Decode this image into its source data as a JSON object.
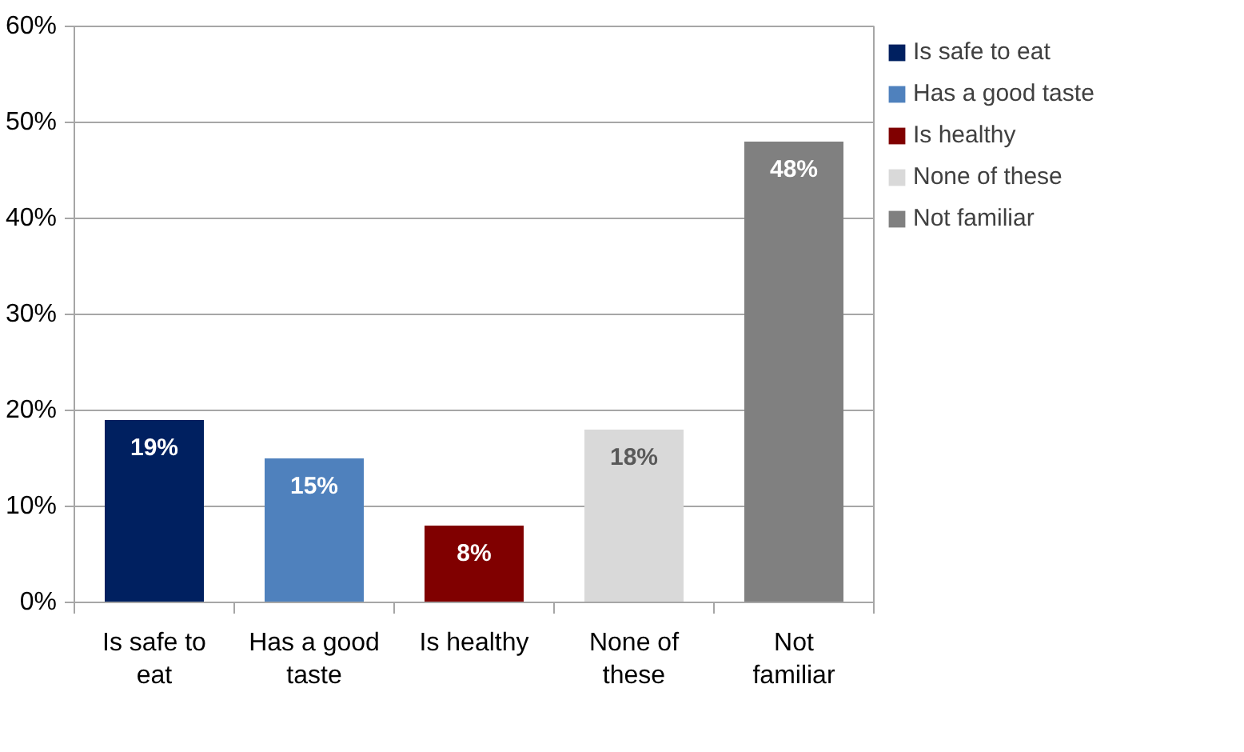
{
  "chart_data": {
    "type": "bar",
    "categories": [
      "Is safe to eat",
      "Has a good taste",
      "Is healthy",
      "None of these",
      "Not familiar"
    ],
    "series": [
      {
        "name": "Is safe to eat",
        "color": "#002060",
        "values": [
          19,
          null,
          null,
          null,
          null
        ],
        "value_labels": [
          "19%",
          null,
          null,
          null,
          null
        ]
      },
      {
        "name": "Has a good taste",
        "color": "#4f81bd",
        "values": [
          null,
          15,
          null,
          null,
          null
        ],
        "value_labels": [
          null,
          "15%",
          null,
          null,
          null
        ]
      },
      {
        "name": "Is healthy",
        "color": "#800000",
        "values": [
          null,
          null,
          8,
          null,
          null
        ],
        "value_labels": [
          null,
          null,
          "8%",
          null,
          null
        ]
      },
      {
        "name": "None of these",
        "color": "#d9d9d9",
        "values": [
          null,
          null,
          null,
          18,
          null
        ],
        "value_labels": [
          null,
          null,
          null,
          "18%",
          null
        ]
      },
      {
        "name": "Not familiar",
        "color": "#808080",
        "values": [
          null,
          null,
          null,
          null,
          48
        ],
        "value_labels": [
          null,
          null,
          null,
          null,
          "48%"
        ]
      }
    ],
    "ylim": [
      0,
      60
    ],
    "yticks": [
      {
        "value": 0,
        "label": "0%"
      },
      {
        "value": 10,
        "label": "10%"
      },
      {
        "value": 20,
        "label": "20%"
      },
      {
        "value": 30,
        "label": "30%"
      },
      {
        "value": 40,
        "label": "40%"
      },
      {
        "value": 50,
        "label": "50%"
      },
      {
        "value": 60,
        "label": "60%"
      }
    ],
    "grid": "y",
    "legend": "right"
  }
}
